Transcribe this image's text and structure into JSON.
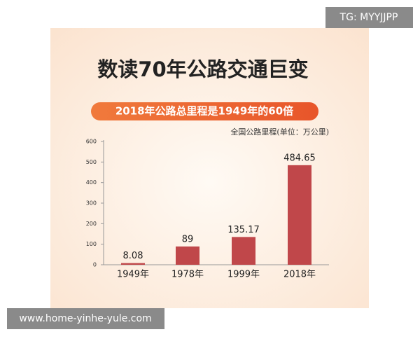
{
  "chart_data": {
    "type": "bar",
    "title": "数读70年公路交通巨变",
    "subtitle": "2018年公路总里程是1949年的60倍",
    "unit_label": "全国公路里程(单位：万公里)",
    "categories": [
      "1949年",
      "1978年",
      "1999年",
      "2018年"
    ],
    "values": [
      8.08,
      89,
      135.17,
      484.65
    ],
    "color": "#c0474a",
    "ylim": [
      0,
      600
    ],
    "yticks": [
      0,
      100,
      200,
      300,
      400,
      500,
      600
    ]
  },
  "watermarks": [
    "TG: MYYJJPP",
    "www.home-yinhe-yule.com"
  ]
}
